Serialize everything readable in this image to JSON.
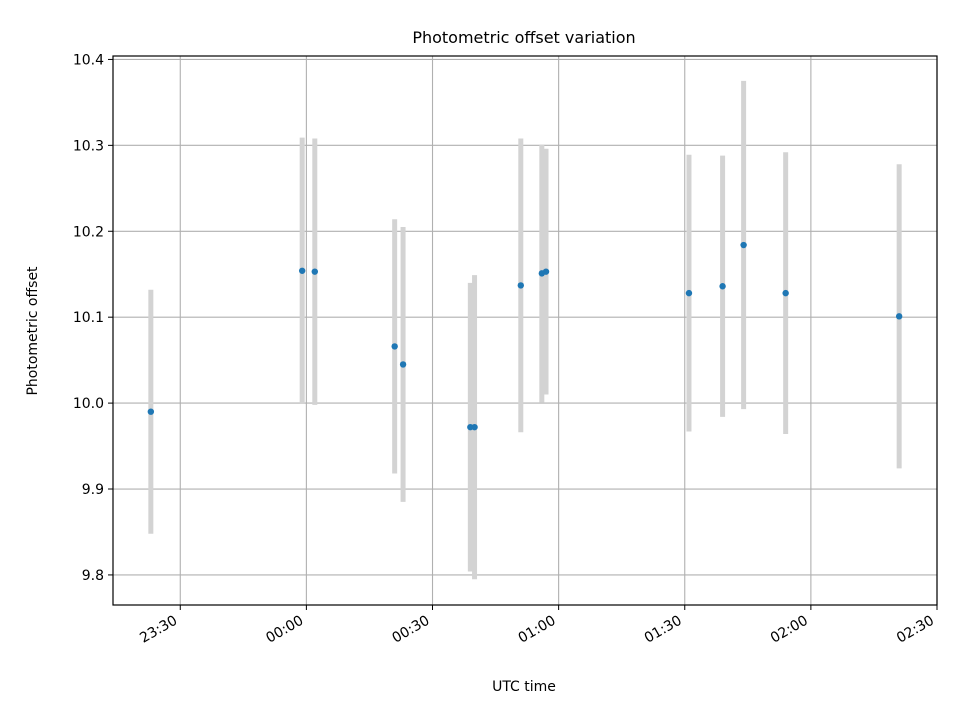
{
  "chart_data": {
    "type": "scatter",
    "title": "Photometric offset variation",
    "xlabel": "UTC time",
    "ylabel": "Photometric offset",
    "x_axis_type": "time",
    "xlim": [
      "23:14",
      "02:30"
    ],
    "ylim": [
      9.765,
      10.404
    ],
    "x_ticks": [
      "23:30",
      "00:00",
      "00:30",
      "01:00",
      "01:30",
      "02:00",
      "02:30"
    ],
    "y_ticks": [
      "9.8",
      "9.9",
      "10.0",
      "10.1",
      "10.2",
      "10.3",
      "10.4"
    ],
    "grid": true,
    "series": [
      {
        "marker_color": "#1f77b4",
        "errorbar_color": "#d3d3d3",
        "points": [
          {
            "t": "23:23",
            "y": 9.99,
            "err": 0.142
          },
          {
            "t": "23:59",
            "y": 10.154,
            "err": 0.155
          },
          {
            "t": "00:02",
            "y": 10.153,
            "err": 0.155
          },
          {
            "t": "00:21",
            "y": 10.066,
            "err": 0.148
          },
          {
            "t": "00:23",
            "y": 10.045,
            "err": 0.16
          },
          {
            "t": "00:39",
            "y": 9.972,
            "err": 0.168
          },
          {
            "t": "00:40",
            "y": 9.972,
            "err": 0.177
          },
          {
            "t": "00:51",
            "y": 10.137,
            "err": 0.171
          },
          {
            "t": "00:56",
            "y": 10.151,
            "err": 0.15
          },
          {
            "t": "00:57",
            "y": 10.153,
            "err": 0.143
          },
          {
            "t": "01:31",
            "y": 10.128,
            "err": 0.161
          },
          {
            "t": "01:39",
            "y": 10.136,
            "err": 0.152
          },
          {
            "t": "01:44",
            "y": 10.184,
            "err": 0.191
          },
          {
            "t": "01:54",
            "y": 10.128,
            "err": 0.164
          },
          {
            "t": "02:21",
            "y": 10.101,
            "err": 0.177
          }
        ]
      }
    ]
  }
}
